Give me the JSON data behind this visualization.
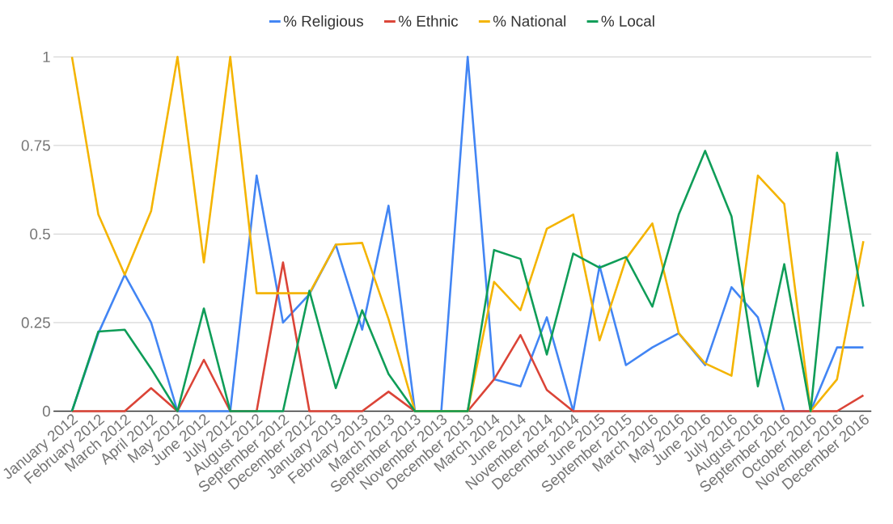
{
  "chart_data": {
    "type": "line",
    "categories": [
      "January 2012",
      "February 2012",
      "March 2012",
      "April 2012",
      "May 2012",
      "June 2012",
      "July 2012",
      "August 2012",
      "September 2012",
      "December 2012",
      "January 2013",
      "February 2013",
      "March 2013",
      "September 2013",
      "November 2013",
      "December 2013",
      "March 2014",
      "June 2014",
      "November 2014",
      "December 2014",
      "June 2015",
      "September 2015",
      "March 2016",
      "May 2016",
      "June 2016",
      "July 2016",
      "August 2016",
      "September 2016",
      "October 2016",
      "November 2016",
      "December 2016"
    ],
    "series": [
      {
        "name": "% Religious",
        "color": "#4285f4",
        "values": [
          0,
          0.22,
          0.385,
          0.25,
          0,
          0,
          0,
          0.665,
          0.25,
          0.33,
          0.47,
          0.23,
          0.58,
          0,
          0,
          1,
          0.09,
          0.07,
          0.265,
          0,
          0.41,
          0.13,
          0.18,
          0.22,
          0.13,
          0.35,
          0.265,
          0,
          0,
          0.18,
          0.18
        ]
      },
      {
        "name": "% Ethnic",
        "color": "#db4437",
        "values": [
          0,
          0,
          0,
          0.065,
          0,
          0.145,
          0,
          0,
          0.42,
          0,
          0,
          0,
          0.055,
          0,
          0,
          0,
          0.09,
          0.215,
          0.06,
          0,
          0,
          0,
          0,
          0,
          0,
          0,
          0,
          0,
          0,
          0,
          0.045
        ]
      },
      {
        "name": "% National",
        "color": "#f4b400",
        "values": [
          1,
          0.555,
          0.385,
          0.565,
          1,
          0.42,
          1,
          0.333,
          0.333,
          0.333,
          0.47,
          0.475,
          0.26,
          0,
          0,
          0,
          0.365,
          0.285,
          0.515,
          0.555,
          0.2,
          0.43,
          0.53,
          0.22,
          0.135,
          0.1,
          0.665,
          0.585,
          0,
          0.09,
          0.48
        ]
      },
      {
        "name": "% Local",
        "color": "#0f9d58",
        "values": [
          0,
          0.225,
          0.23,
          0.12,
          0,
          0.29,
          0,
          0,
          0,
          0.34,
          0.065,
          0.285,
          0.105,
          0,
          0,
          0,
          0.455,
          0.43,
          0.16,
          0.445,
          0.405,
          0.435,
          0.295,
          0.555,
          0.735,
          0.55,
          0.07,
          0.415,
          0,
          0.73,
          0.295
        ]
      }
    ],
    "ylim": [
      0,
      1
    ],
    "yticks": [
      0,
      0.25,
      0.5,
      0.75,
      1
    ],
    "grid": "y",
    "legend": "top",
    "marker": "none",
    "line_style": "solid"
  }
}
